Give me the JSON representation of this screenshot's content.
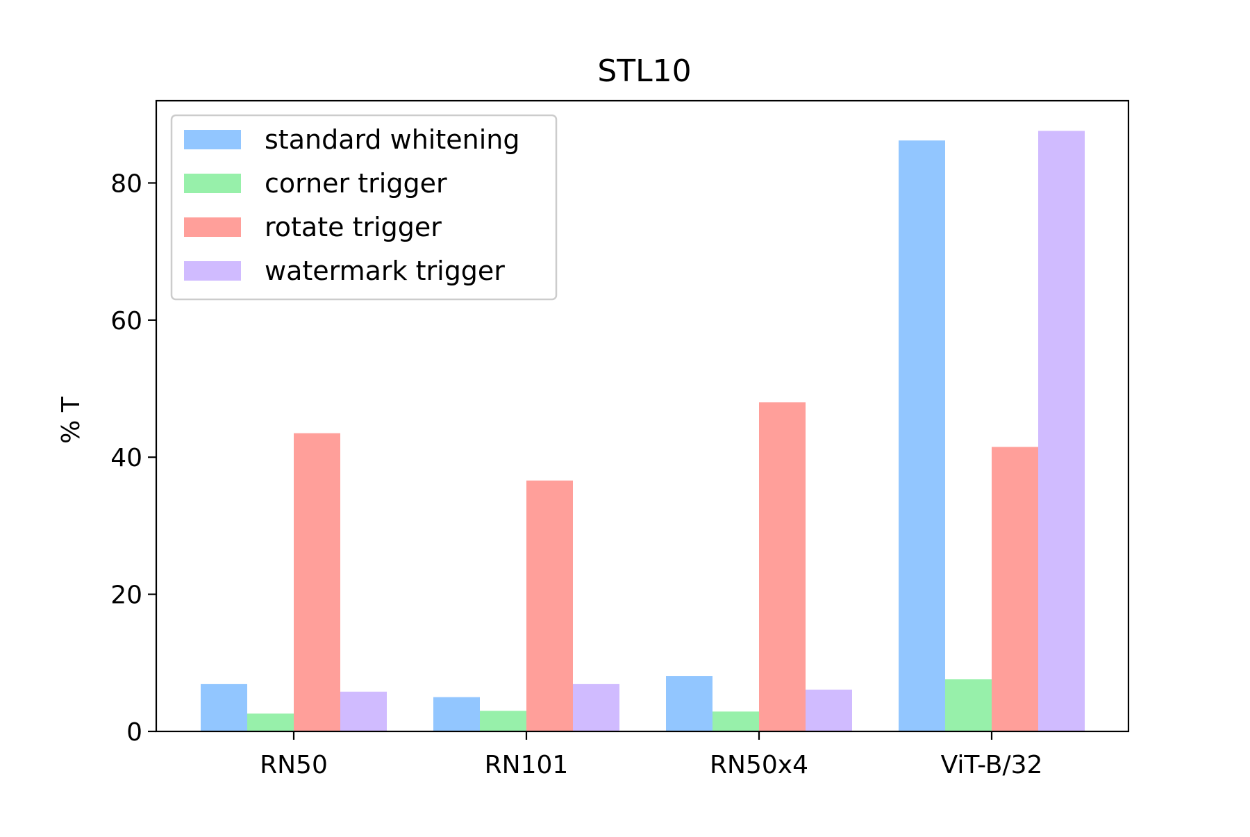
{
  "chart_data": {
    "type": "bar",
    "title": "STL10",
    "xlabel": "",
    "ylabel": "% T",
    "categories": [
      "RN50",
      "RN101",
      "RN50x4",
      "ViT-B/32"
    ],
    "ylim": [
      0,
      92
    ],
    "yticks": [
      0,
      20,
      40,
      60,
      80
    ],
    "grid": false,
    "legend_position": "upper-left",
    "series": [
      {
        "name": "standard whitening",
        "color": "#92c6ff",
        "values": [
          6.9,
          5.0,
          8.1,
          86.2
        ]
      },
      {
        "name": "corner trigger",
        "color": "#97f0aa",
        "values": [
          2.6,
          3.0,
          2.9,
          7.6
        ]
      },
      {
        "name": "rotate trigger",
        "color": "#ff9f9a",
        "values": [
          43.5,
          36.6,
          48.0,
          41.5
        ]
      },
      {
        "name": "watermark trigger",
        "color": "#d0bbff",
        "values": [
          5.8,
          6.9,
          6.1,
          87.6
        ]
      }
    ]
  }
}
